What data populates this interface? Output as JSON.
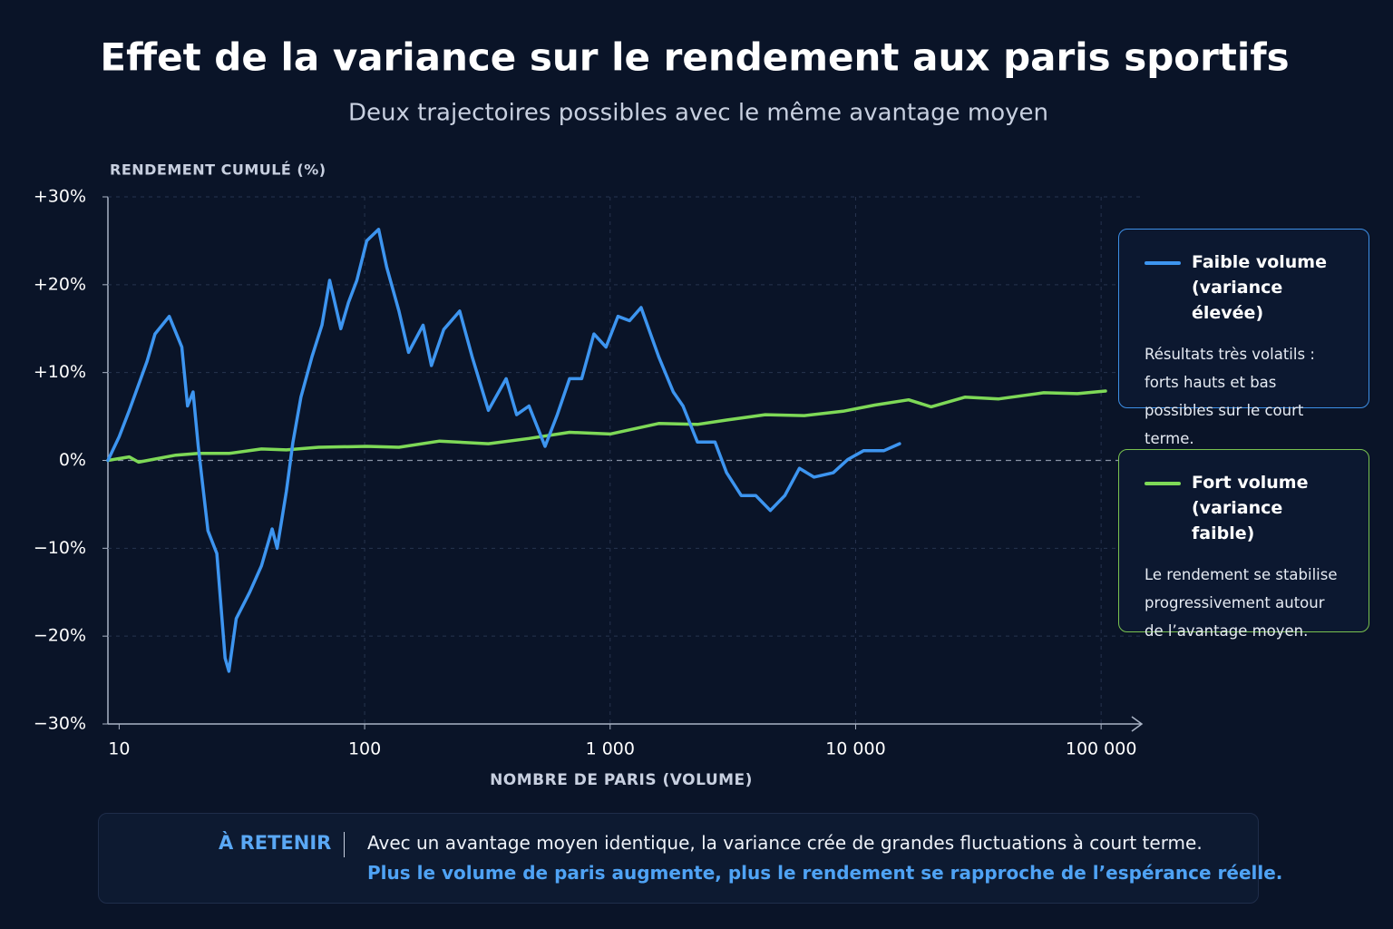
{
  "chart_data": {
    "type": "line",
    "title": "Effet de la variance sur le rendement aux paris sportifs",
    "subtitle": "Deux trajectoires possibles avec le même avantage moyen",
    "y_label": "RENDEMENT CUMULÉ (%)",
    "x_label": "NOMBRE DE PARIS (VOLUME)",
    "x_scale": "log",
    "xlim": [
      9,
      130000
    ],
    "xticks": [
      10,
      100,
      {
        "value": 1000,
        "label": "1 000"
      },
      {
        "value": 10000,
        "label": "10 000"
      },
      {
        "value": 100000,
        "label": "100 000"
      }
    ],
    "ylim": [
      -30,
      30
    ],
    "yticks": [
      {
        "value": 30,
        "label": "+30%"
      },
      {
        "value": 20,
        "label": "+20%"
      },
      {
        "value": 10,
        "label": "+10%"
      },
      {
        "value": 0,
        "label": "0%"
      },
      {
        "value": -10,
        "label": "−10%"
      },
      {
        "value": -20,
        "label": "−20%"
      },
      {
        "value": -30,
        "label": "−30%"
      }
    ],
    "grid": true,
    "series": [
      {
        "name": "Faible volume (variance élevée)",
        "color": "#3d95f0",
        "description": "Résultats très volatils : forts hauts et bas possibles sur le court terme.",
        "x": [
          9,
          10,
          11,
          13,
          14,
          16,
          18,
          19,
          20,
          21,
          23,
          25,
          27,
          28,
          30,
          34,
          38,
          42,
          44,
          48,
          51,
          55,
          61,
          67,
          72,
          80,
          86,
          93,
          102,
          114,
          123,
          138,
          151,
          173,
          187,
          210,
          244,
          274,
          319,
          377,
          416,
          467,
          543,
          609,
          683,
          766,
          859,
          962,
          1076,
          1200,
          1337,
          1577,
          1808,
          1980,
          2268,
          2673,
          2981,
          3418,
          3918,
          4491,
          5148,
          5902,
          6764,
          8110,
          9290,
          10770,
          13020,
          15100
        ],
        "values": [
          0,
          2.7,
          5.7,
          11.3,
          14.4,
          16.4,
          12.9,
          6.2,
          7.8,
          1.6,
          -8,
          -10.6,
          -22.5,
          -24,
          -18,
          -15,
          -12,
          -7.8,
          -10,
          -3.5,
          2,
          7.2,
          11.8,
          15.4,
          20.5,
          15,
          18,
          20.5,
          25,
          26.3,
          22,
          17,
          12.3,
          15.4,
          10.8,
          14.9,
          17,
          11.8,
          5.7,
          9.3,
          5.2,
          6.2,
          1.6,
          5.2,
          9.3,
          9.3,
          14.4,
          12.9,
          16.4,
          15.9,
          17.4,
          11.8,
          7.8,
          6.2,
          2.1,
          2.1,
          -1.4,
          -4,
          -4,
          -5.7,
          -4,
          -0.9,
          -1.9,
          -1.4,
          0.1,
          1.1,
          1.1,
          1.9
        ]
      },
      {
        "name": "Fort volume (variance faible)",
        "color": "#7ed957",
        "description": "Le rendement se stabilise progressivement autour de l’avantage moyen.",
        "x": [
          9,
          11,
          12,
          17,
          21,
          28,
          38,
          48,
          65,
          102,
          138,
          202,
          319,
          467,
          683,
          1000,
          1577,
          2268,
          2981,
          4285,
          6180,
          8890,
          11970,
          16440,
          20300,
          27850,
          38280,
          58390,
          80100,
          104200
        ],
        "values": [
          0,
          0.4,
          -0.2,
          0.6,
          0.8,
          0.8,
          1.3,
          1.2,
          1.5,
          1.6,
          1.5,
          2.2,
          1.9,
          2.5,
          3.2,
          3.0,
          4.2,
          4.1,
          4.6,
          5.2,
          5.1,
          5.6,
          6.3,
          6.9,
          6.1,
          7.2,
          7.0,
          7.7,
          7.6,
          7.9
        ]
      }
    ],
    "callout": {
      "label": "À RETENIR",
      "text": "Avec un avantage moyen identique, la variance crée de grandes fluctuations à court terme.",
      "highlight": "Plus le volume de paris augmente, plus le rendement se rapproche de l’espérance réelle."
    }
  }
}
